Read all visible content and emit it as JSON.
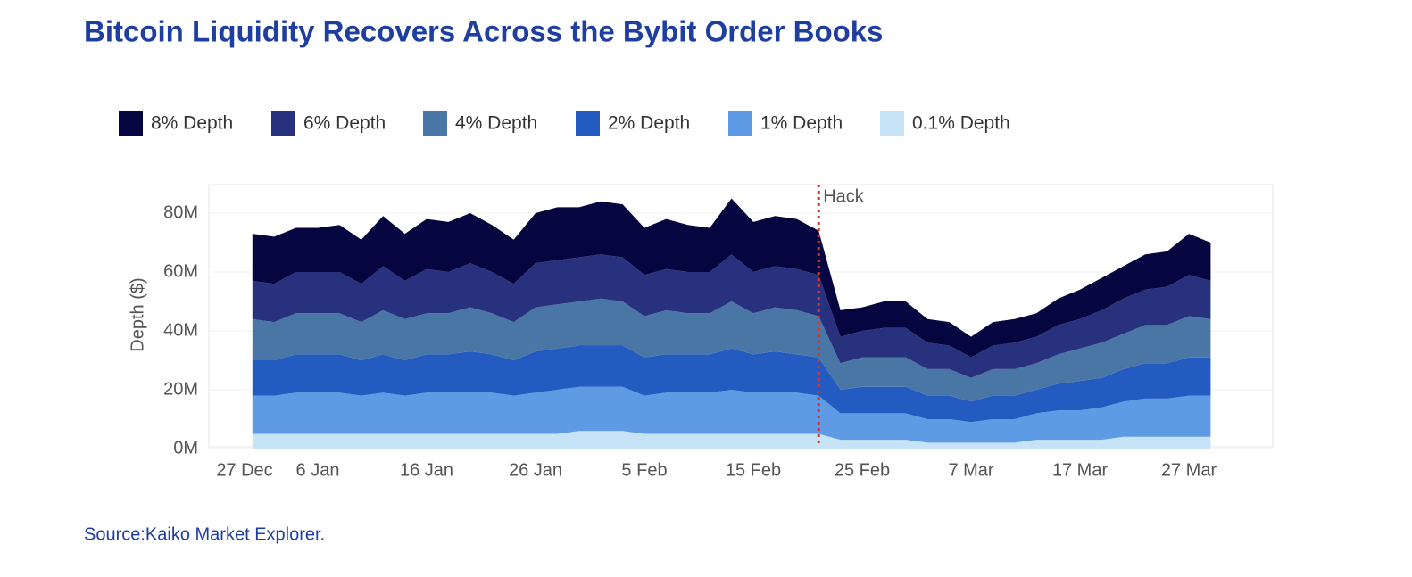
{
  "chart_data": {
    "type": "stacked_area",
    "title": "Bitcoin Liquidity Recovers Across the Bybit Order Books",
    "source": "Source:Kaiko Market Explorer.",
    "ylabel": "Depth ($)",
    "categories": [
      "27 Dec",
      "29 Dec",
      "31 Dec",
      "2 Jan",
      "4 Jan",
      "6 Jan",
      "8 Jan",
      "10 Jan",
      "12 Jan",
      "14 Jan",
      "16 Jan",
      "18 Jan",
      "20 Jan",
      "22 Jan",
      "24 Jan",
      "26 Jan",
      "28 Jan",
      "30 Jan",
      "1 Feb",
      "3 Feb",
      "5 Feb",
      "7 Feb",
      "9 Feb",
      "11 Feb",
      "13 Feb",
      "15 Feb",
      "17 Feb",
      "19 Feb",
      "21 Feb",
      "23 Feb",
      "25 Feb",
      "27 Feb",
      "1 Mar",
      "3 Mar",
      "5 Mar",
      "7 Mar",
      "9 Mar",
      "11 Mar",
      "13 Mar",
      "15 Mar",
      "17 Mar",
      "19 Mar",
      "21 Mar",
      "23 Mar",
      "25 Mar",
      "27 Mar",
      "29 Mar"
    ],
    "xticks": [
      "27 Dec",
      "6 Jan",
      "16 Jan",
      "26 Jan",
      "5 Feb",
      "15 Feb",
      "25 Feb",
      "7 Mar",
      "17 Mar",
      "27 Mar"
    ],
    "ylim": [
      0,
      90
    ],
    "yticks": [
      {
        "value": 0,
        "label": "0M"
      },
      {
        "value": 20,
        "label": "20M"
      },
      {
        "value": 40,
        "label": "40M"
      },
      {
        "value": 60,
        "label": "60M"
      },
      {
        "value": 80,
        "label": "80M"
      }
    ],
    "grid": true,
    "annotation": {
      "text": "Hack",
      "x": "21 Feb",
      "color": "#e0302a"
    },
    "series": [
      {
        "name": "8% Depth",
        "color": "#05063f",
        "values": [
          null,
          null,
          16,
          16,
          15,
          15,
          16,
          15,
          17,
          16,
          17,
          17,
          17,
          16,
          15,
          17,
          18,
          17,
          18,
          18,
          16,
          17,
          16,
          15,
          19,
          17,
          17,
          17,
          15,
          9,
          8,
          9,
          9,
          8,
          8,
          7,
          8,
          8,
          8,
          9,
          10,
          11,
          11,
          12,
          12,
          14,
          13
        ]
      },
      {
        "name": "6% Depth",
        "color": "#27317e",
        "values": [
          null,
          null,
          13,
          13,
          14,
          14,
          14,
          13,
          15,
          13,
          15,
          14,
          15,
          14,
          13,
          15,
          15,
          15,
          15,
          15,
          14,
          14,
          14,
          14,
          16,
          14,
          14,
          14,
          14,
          9,
          9,
          10,
          10,
          9,
          8,
          7,
          8,
          9,
          9,
          10,
          10,
          11,
          12,
          12,
          13,
          14,
          13
        ]
      },
      {
        "name": "4% Depth",
        "color": "#4a76a5",
        "values": [
          null,
          null,
          14,
          13,
          14,
          14,
          14,
          13,
          15,
          14,
          14,
          14,
          15,
          14,
          13,
          15,
          15,
          15,
          16,
          15,
          14,
          15,
          14,
          14,
          16,
          14,
          15,
          15,
          14,
          9,
          10,
          10,
          10,
          9,
          9,
          8,
          9,
          9,
          9,
          10,
          11,
          12,
          12,
          13,
          13,
          14,
          13
        ]
      },
      {
        "name": "2% Depth",
        "color": "#235bc0",
        "values": [
          null,
          null,
          12,
          12,
          13,
          13,
          13,
          12,
          13,
          12,
          13,
          13,
          14,
          13,
          12,
          14,
          14,
          14,
          14,
          14,
          13,
          13,
          13,
          13,
          14,
          13,
          14,
          13,
          13,
          8,
          9,
          9,
          9,
          8,
          8,
          7,
          8,
          8,
          8,
          9,
          10,
          10,
          11,
          12,
          12,
          13,
          13
        ]
      },
      {
        "name": "1% Depth",
        "color": "#5e9be4",
        "values": [
          null,
          null,
          13,
          13,
          14,
          14,
          14,
          13,
          14,
          13,
          14,
          14,
          14,
          14,
          13,
          14,
          15,
          15,
          15,
          15,
          13,
          14,
          14,
          14,
          15,
          14,
          14,
          14,
          13,
          9,
          9,
          9,
          9,
          8,
          8,
          7,
          8,
          8,
          9,
          10,
          10,
          11,
          12,
          13,
          13,
          14,
          14
        ]
      },
      {
        "name": "0.1% Depth",
        "color": "#c6e3f7",
        "values": [
          null,
          null,
          5,
          5,
          5,
          5,
          5,
          5,
          5,
          5,
          5,
          5,
          5,
          5,
          5,
          5,
          5,
          6,
          6,
          6,
          5,
          5,
          5,
          5,
          5,
          5,
          5,
          5,
          5,
          3,
          3,
          3,
          3,
          2,
          2,
          2,
          2,
          2,
          3,
          3,
          3,
          3,
          4,
          4,
          4,
          4,
          4
        ]
      }
    ]
  }
}
